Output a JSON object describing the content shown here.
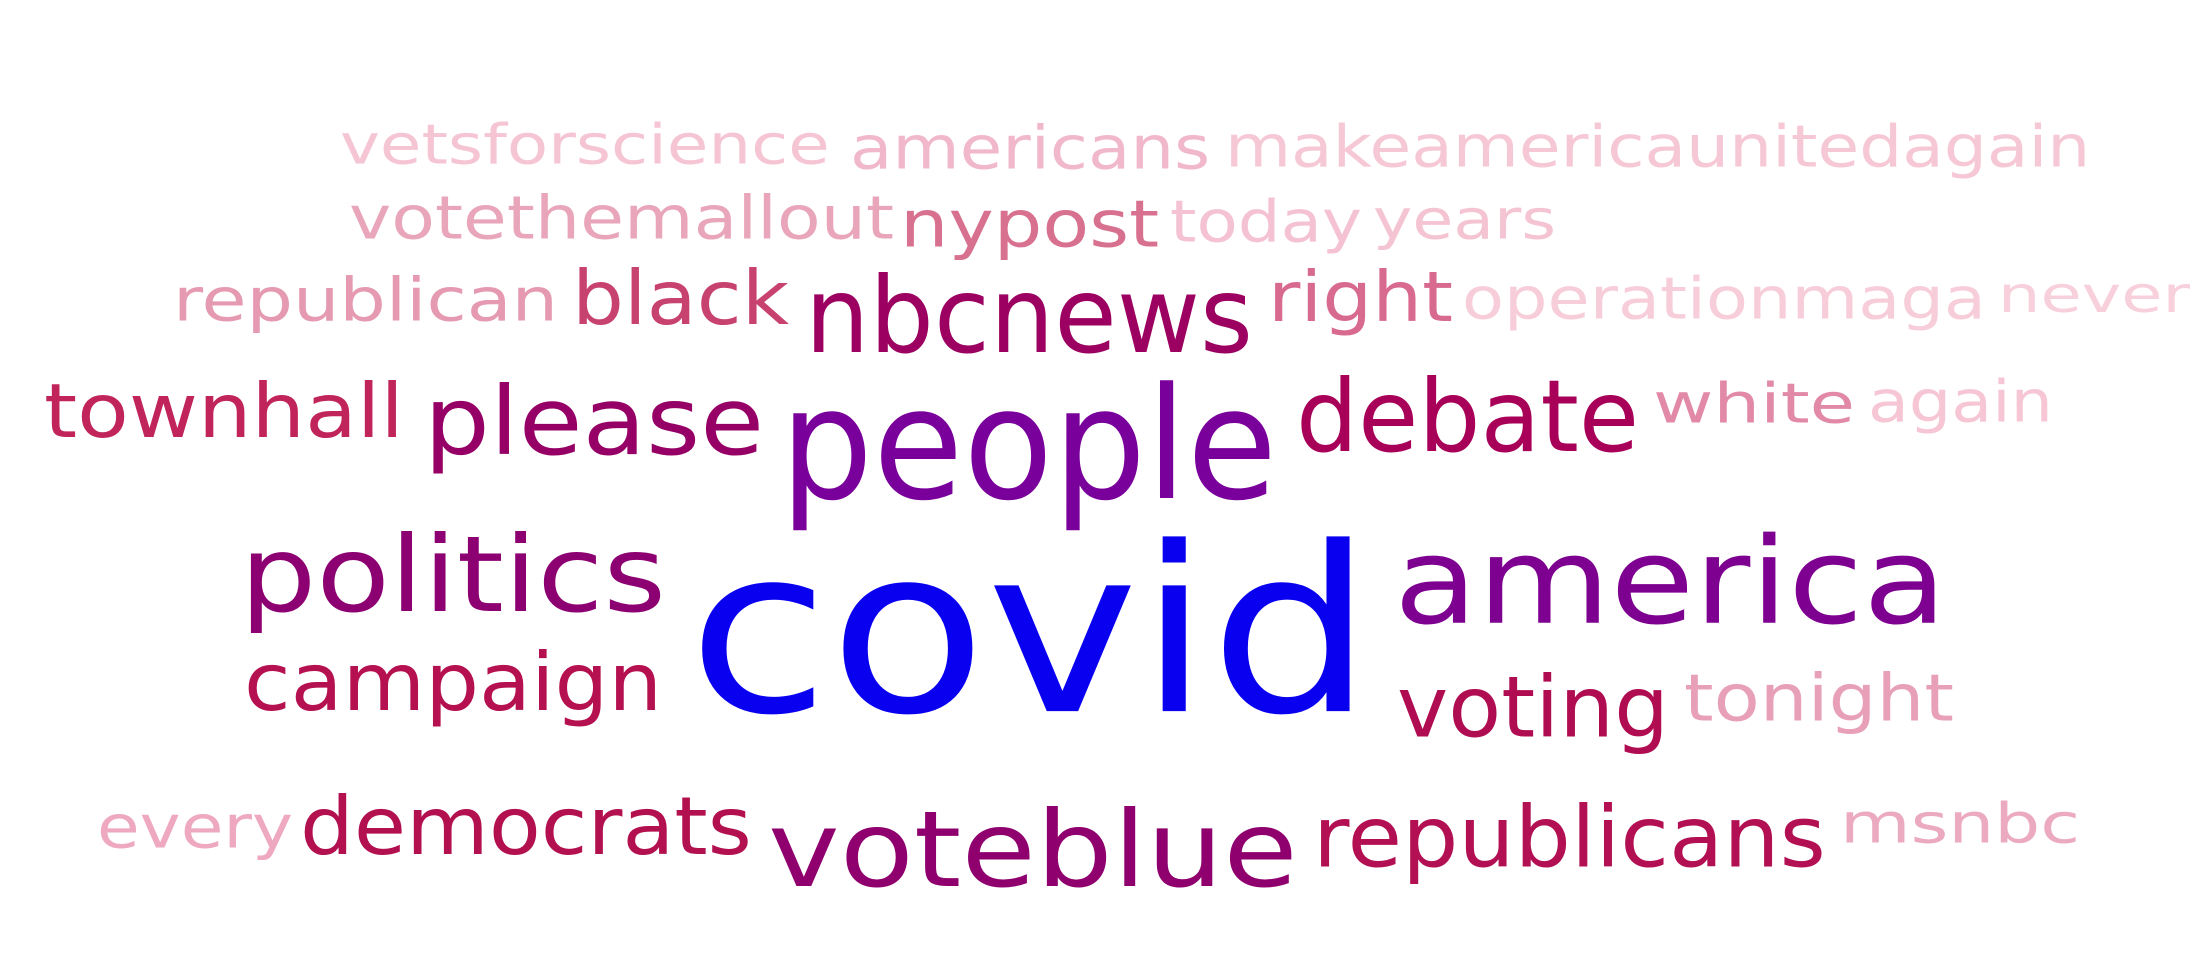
{
  "word_cloud": {
    "words": [
      {
        "id": "covid",
        "text": "covid",
        "color": "#0a00f0"
      },
      {
        "id": "people",
        "text": "people",
        "color": "#7a009c"
      },
      {
        "id": "america",
        "text": "america",
        "color": "#7e0090"
      },
      {
        "id": "politics",
        "text": "politics",
        "color": "#8c0072"
      },
      {
        "id": "voteblue",
        "text": "voteblue",
        "color": "#8f006e"
      },
      {
        "id": "nbcnews",
        "text": "nbcnews",
        "color": "#9c0060"
      },
      {
        "id": "debate",
        "text": "debate",
        "color": "#a80058"
      },
      {
        "id": "please",
        "text": "please",
        "color": "#960066"
      },
      {
        "id": "campaign",
        "text": "campaign",
        "color": "#b5104f"
      },
      {
        "id": "voting",
        "text": "voting",
        "color": "#b00c52"
      },
      {
        "id": "democrats",
        "text": "democrats",
        "color": "#b31050"
      },
      {
        "id": "republicans",
        "text": "republicans",
        "color": "#b21052"
      },
      {
        "id": "townhall",
        "text": "townhall",
        "color": "#c0245a"
      },
      {
        "id": "black",
        "text": "black",
        "color": "#c8426f"
      },
      {
        "id": "right",
        "text": "right",
        "color": "#d76a8e"
      },
      {
        "id": "nypost",
        "text": "nypost",
        "color": "#d7718f"
      },
      {
        "id": "republican",
        "text": "republican",
        "color": "#e59ab2"
      },
      {
        "id": "votethemallout",
        "text": "votethemallout",
        "color": "#e9a6bb"
      },
      {
        "id": "white",
        "text": "white",
        "color": "#e189a6"
      },
      {
        "id": "tonight",
        "text": "tonight",
        "color": "#e89fb8"
      },
      {
        "id": "msnbc",
        "text": "msnbc",
        "color": "#ebaabf"
      },
      {
        "id": "every",
        "text": "every",
        "color": "#eea8bf"
      },
      {
        "id": "americans",
        "text": "americans",
        "color": "#f1b8cb"
      },
      {
        "id": "vetsforscience",
        "text": "vetsforscience",
        "color": "#f5c5d4"
      },
      {
        "id": "makeamericaunitedagain",
        "text": "makeamericaunitedagain",
        "color": "#f6c8d6"
      },
      {
        "id": "today",
        "text": "today",
        "color": "#f4c2d2"
      },
      {
        "id": "years",
        "text": "years",
        "color": "#f5c4d3"
      },
      {
        "id": "operationmaga",
        "text": "operationmaga",
        "color": "#f7cdda"
      },
      {
        "id": "never",
        "text": "never",
        "color": "#f8d0dc"
      },
      {
        "id": "again",
        "text": "again",
        "color": "#f6c6d5"
      }
    ]
  }
}
